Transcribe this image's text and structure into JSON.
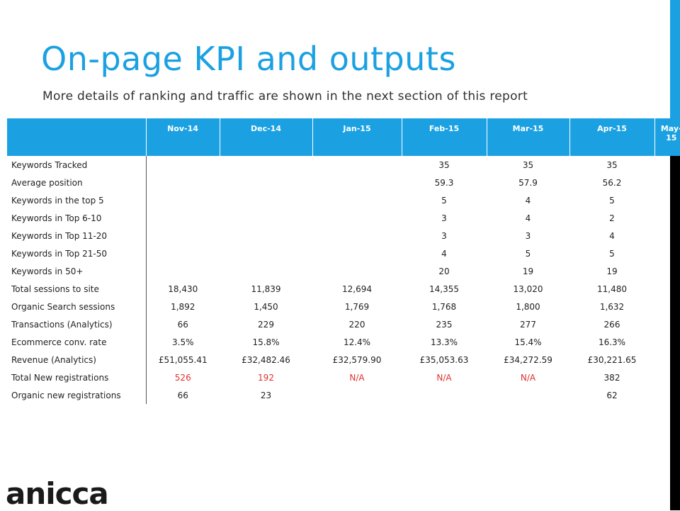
{
  "slide": {
    "title": "On-page KPI and outputs",
    "subtitle": "More details of ranking and traffic are shown in the next section of this report"
  },
  "table": {
    "headers": [
      "",
      "Nov-14",
      "Dec-14",
      "Jan-15",
      "Feb-15",
      "Mar-15",
      "Apr-15",
      "May-15"
    ],
    "rows": [
      {
        "label": "Keywords Tracked",
        "cells": [
          "",
          "",
          "",
          "35",
          "35",
          "35",
          ""
        ]
      },
      {
        "label": "Average position",
        "cells": [
          "",
          "",
          "",
          "59.3",
          "57.9",
          "56.2",
          ""
        ]
      },
      {
        "label": "Keywords in the top 5",
        "cells": [
          "",
          "",
          "",
          "5",
          "4",
          "5",
          ""
        ]
      },
      {
        "label": "Keywords in Top 6-10",
        "cells": [
          "",
          "",
          "",
          "3",
          "4",
          "2",
          ""
        ]
      },
      {
        "label": "Keywords in Top 11-20",
        "cells": [
          "",
          "",
          "",
          "3",
          "3",
          "4",
          ""
        ]
      },
      {
        "label": "Keywords in Top 21-50",
        "cells": [
          "",
          "",
          "",
          "4",
          "5",
          "5",
          ""
        ]
      },
      {
        "label": "Keywords in 50+",
        "cells": [
          "",
          "",
          "",
          "20",
          "19",
          "19",
          ""
        ]
      },
      {
        "label": "Total sessions to site",
        "cells": [
          "18,430",
          "11,839",
          "12,694",
          "14,355",
          "13,020",
          "11,480",
          ""
        ]
      },
      {
        "label": "Organic Search sessions",
        "cells": [
          "1,892",
          "1,450",
          "1,769",
          "1,768",
          "1,800",
          "1,632",
          ""
        ]
      },
      {
        "label": "Transactions (Analytics)",
        "cells": [
          "66",
          "229",
          "220",
          "235",
          "277",
          "266",
          ""
        ]
      },
      {
        "label": "Ecommerce conv. rate",
        "cells": [
          "3.5%",
          "15.8%",
          "12.4%",
          "13.3%",
          "15.4%",
          "16.3%",
          ""
        ]
      },
      {
        "label": "Revenue (Analytics)",
        "cells": [
          "£51,055.41",
          "£32,482.46",
          "£32,579.90",
          "£35,053.63",
          "£34,272.59",
          "£30,221.65",
          ""
        ]
      },
      {
        "label": "Total New registrations",
        "cells": [
          "526",
          "192",
          "N/A",
          "N/A",
          "N/A",
          "382",
          ""
        ]
      },
      {
        "label": "Organic new registrations",
        "cells": [
          "66",
          "23",
          "",
          "",
          "",
          "62",
          ""
        ]
      }
    ]
  },
  "logo": {
    "text": "anicca"
  },
  "colors": {
    "accent": "#1ba1e2",
    "highlight_red": "#e03030"
  }
}
